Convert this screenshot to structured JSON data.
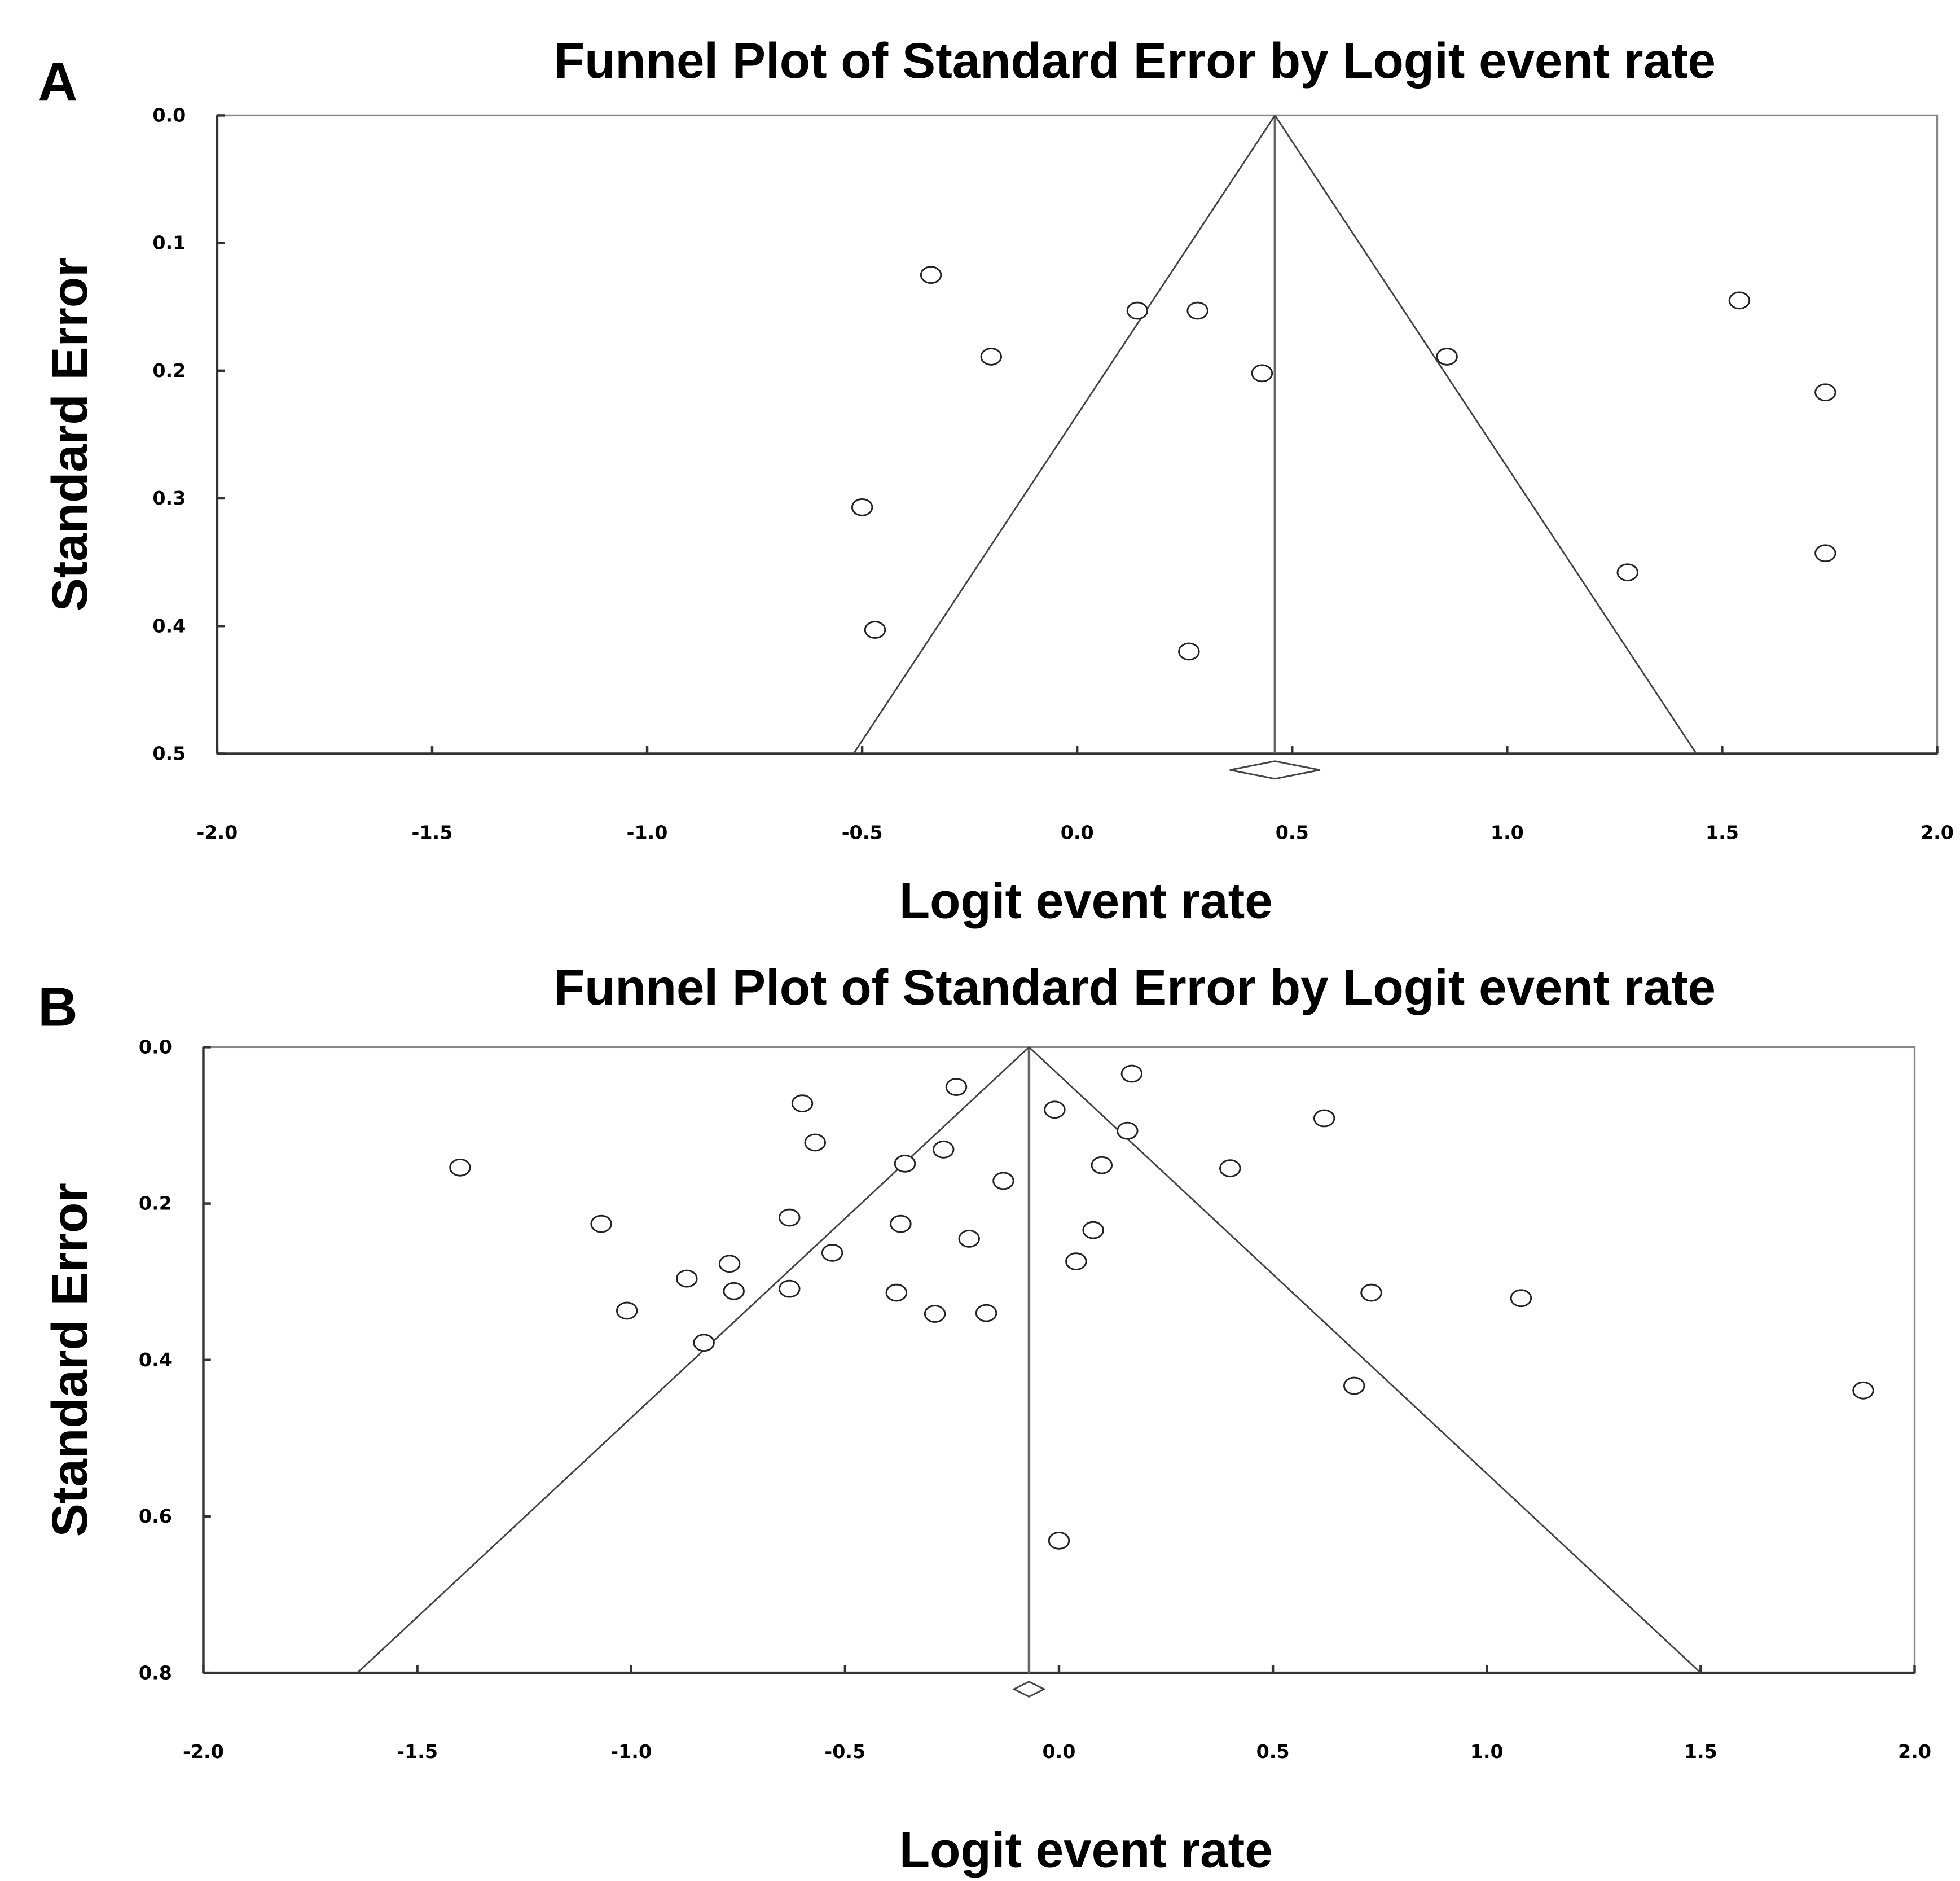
{
  "chart_data": [
    {
      "type": "scatter",
      "panel": "A",
      "title": "Funnel Plot of Standard Error by Logit event rate",
      "x_label": "Logit event rate",
      "y_label": "Standard Error",
      "xlim": [
        -2.0,
        2.0
      ],
      "ylim": [
        0.0,
        0.5
      ],
      "y_inverted": true,
      "xticks": [
        {
          "value": -2,
          "label": "-2.0"
        },
        -1.5,
        {
          "value": -1,
          "label": "-1.0"
        },
        -0.5,
        {
          "value": 0,
          "label": "0.0"
        },
        0.5,
        {
          "value": 1,
          "label": "1.0"
        },
        1.5,
        {
          "value": 2,
          "label": "2.0"
        }
      ],
      "yticks": [
        {
          "value": 0,
          "label": "0.0"
        },
        0.1,
        0.2,
        0.3,
        0.4,
        0.5
      ],
      "x": [
        -0.34,
        0.14,
        0.28,
        -0.2,
        0.43,
        0.86,
        1.54,
        1.74,
        -0.5,
        1.28,
        1.74,
        -0.47,
        0.26
      ],
      "values": [
        0.125,
        0.153,
        0.153,
        0.189,
        0.202,
        0.189,
        0.145,
        0.217,
        0.307,
        0.358,
        0.343,
        0.403,
        0.42
      ],
      "pooled_estimate": 0.46,
      "funnel_limits": [
        -0.52,
        1.44
      ]
    },
    {
      "type": "scatter",
      "panel": "B",
      "title": "Funnel Plot of Standard Error by Logit event rate",
      "x_label": "Logit event rate",
      "y_label": "Standard Error",
      "xlim": [
        -2.0,
        2.0
      ],
      "ylim": [
        0.0,
        0.8
      ],
      "y_inverted": true,
      "xticks": [
        {
          "value": -2,
          "label": "-2.0"
        },
        -1.5,
        {
          "value": -1,
          "label": "-1.0"
        },
        -0.5,
        {
          "value": 0,
          "label": "0.0"
        },
        0.5,
        {
          "value": 1,
          "label": "1.0"
        },
        1.5,
        {
          "value": 2,
          "label": "2.0"
        }
      ],
      "yticks": [
        {
          "value": 0,
          "label": "0.0"
        },
        0.2,
        0.4,
        0.6,
        0.8
      ],
      "x": [
        -1.4,
        -1.07,
        -1.01,
        -0.87,
        -0.83,
        -0.77,
        -0.76,
        -0.6,
        -0.57,
        -0.63,
        -0.63,
        -0.53,
        -0.36,
        -0.37,
        -0.38,
        -0.24,
        -0.27,
        -0.29,
        -0.21,
        -0.17,
        -0.13,
        -0.01,
        0.0,
        0.04,
        0.08,
        0.1,
        0.16,
        0.17,
        0.4,
        0.62,
        0.73,
        0.69,
        1.08,
        1.88
      ],
      "values": [
        0.154,
        0.226,
        0.337,
        0.296,
        0.378,
        0.277,
        0.312,
        0.072,
        0.122,
        0.218,
        0.309,
        0.263,
        0.149,
        0.226,
        0.314,
        0.051,
        0.131,
        0.341,
        0.245,
        0.34,
        0.171,
        0.08,
        0.631,
        0.274,
        0.234,
        0.151,
        0.107,
        0.034,
        0.155,
        0.091,
        0.314,
        0.433,
        0.321,
        0.439
      ],
      "pooled_estimate": -0.07,
      "funnel_limits": [
        -1.64,
        1.5
      ]
    }
  ]
}
